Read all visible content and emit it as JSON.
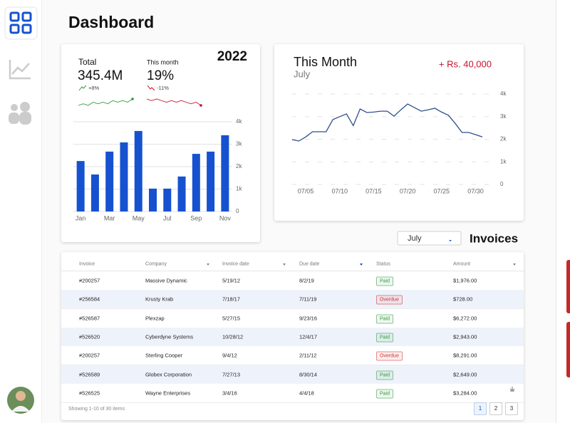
{
  "header": {
    "title": "Dashboard"
  },
  "summary": {
    "year": "2022",
    "total": {
      "label": "Total",
      "value": "345.4M",
      "change": "+8%",
      "trend": {
        "color": "#2e9a3a",
        "values": [
          3,
          4,
          3,
          5,
          4,
          5,
          4,
          6,
          5,
          6,
          5,
          7
        ]
      }
    },
    "month": {
      "label": "This month",
      "value": "19%",
      "change": "-11%",
      "trend": {
        "color": "#c8102e",
        "values": [
          7,
          6,
          7,
          6,
          5,
          6,
          5,
          6,
          5,
          4,
          5,
          3
        ]
      }
    }
  },
  "bar_chart": {
    "type": "bar",
    "categories": [
      "Jan",
      null,
      "Mar",
      null,
      "May",
      null,
      "Jul",
      null,
      "Sep",
      null,
      "Nov"
    ],
    "values": [
      2250,
      1650,
      2670,
      3080,
      3590,
      1020,
      1020,
      1560,
      2570,
      2670,
      3400
    ],
    "color": "#1652d0",
    "ylim": [
      0,
      4000
    ],
    "yticks": [
      0,
      {
        "value": 1000,
        "label": "1k"
      },
      {
        "value": 2000,
        "label": "2k"
      },
      {
        "value": 3000,
        "label": "3k"
      },
      {
        "value": 4000,
        "label": "4k"
      }
    ],
    "grid": true
  },
  "line_chart": {
    "type": "line",
    "title": "This Month",
    "subtitle": "July",
    "annotation": "+ Rs. 40,000",
    "categories": [
      null,
      null,
      "07/05",
      null,
      null,
      null,
      null,
      "07/10",
      null,
      null,
      null,
      null,
      "07/15",
      null,
      null,
      null,
      null,
      "07/20",
      null,
      null,
      null,
      null,
      "07/25",
      null,
      null,
      null,
      null,
      "07/30",
      null
    ],
    "values": [
      1980,
      1920,
      2100,
      2330,
      2330,
      2330,
      2870,
      3000,
      3120,
      2600,
      3340,
      3180,
      3200,
      3240,
      3240,
      3020,
      3300,
      3560,
      3400,
      3240,
      3300,
      3370,
      3200,
      3060,
      2700,
      2300,
      2300,
      2200,
      2100
    ],
    "color": "#2f4f8f",
    "ylim": [
      0,
      4000
    ],
    "yticks": [
      0,
      {
        "value": 1000,
        "label": "1k"
      },
      {
        "value": 2000,
        "label": "2k"
      },
      {
        "value": 3000,
        "label": "3k"
      },
      {
        "value": 4000,
        "label": "4k"
      }
    ],
    "grid": true
  },
  "invoices": {
    "filter": "July",
    "title": "Invoices",
    "columns": [
      "Invoice",
      "Company",
      "Invoice date",
      "Due date",
      "Status",
      "Amount"
    ],
    "rows": [
      [
        "#200257",
        "Massive Dynamic",
        "5/19/12",
        "8/2/19",
        "Paid",
        "$1,976.00"
      ],
      [
        "#256584",
        "Krusty Krab",
        "7/18/17",
        "7/11/19",
        "Overdue",
        "$728.00"
      ],
      [
        "#526587",
        "Plexzap",
        "5/27/15",
        "9/23/16",
        "Paid",
        "$6,272.00"
      ],
      [
        "#526520",
        "Cyberdyne Systems",
        "10/28/12",
        "12/4/17",
        "Paid",
        "$2,943.00"
      ],
      [
        "#200257",
        "Sterling Cooper",
        "9/4/12",
        "2/11/12",
        "Overdue",
        "$8,291.00"
      ],
      [
        "#526589",
        "Globex Corporation",
        "7/27/13",
        "8/30/14",
        "Paid",
        "$2,649.00"
      ],
      [
        "#526525",
        "Wayne Enterprises",
        "3/4/16",
        "4/4/18",
        "Paid",
        "$3,284.00"
      ]
    ],
    "status_colors": {
      "Paid": "#2e9a3a",
      "Overdue": "#d32f2f"
    },
    "footer": "Showing 1-10 of 30 items",
    "pages": [
      "1",
      "2",
      "3"
    ]
  }
}
